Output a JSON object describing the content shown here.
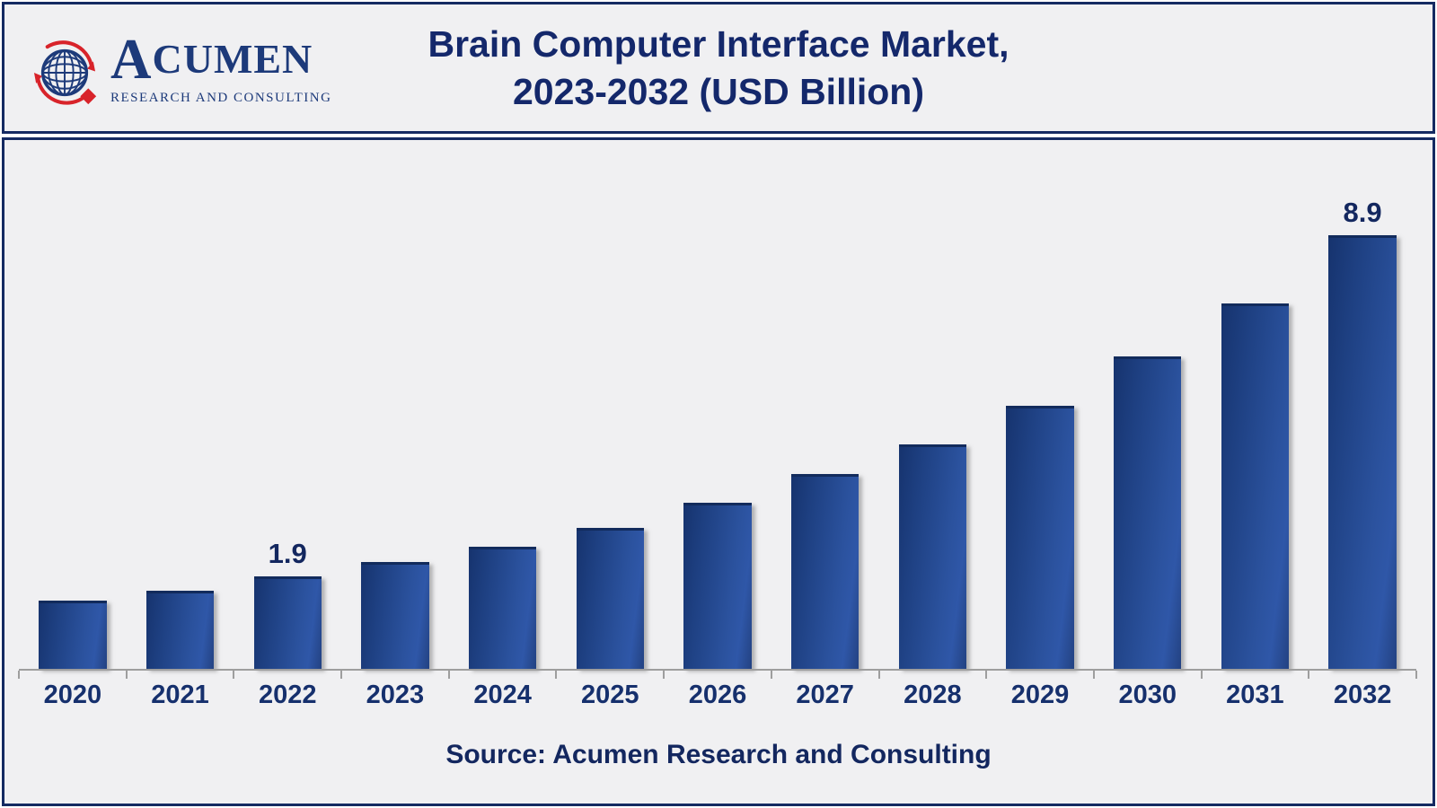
{
  "header": {
    "logo": {
      "brand_initial": "A",
      "brand_rest": "CUMEN",
      "tagline": "RESEARCH AND CONSULTING"
    },
    "title_line1": "Brain Computer Interface Market,",
    "title_line2": "2023-2032 (USD Billion)"
  },
  "chart_data": {
    "type": "bar",
    "title": "Brain Computer Interface Market, 2023-2032 (USD Billion)",
    "unit": "USD Billion",
    "categories": [
      "2020",
      "2021",
      "2022",
      "2023",
      "2024",
      "2025",
      "2026",
      "2027",
      "2028",
      "2029",
      "2030",
      "2031",
      "2032"
    ],
    "values": [
      1.4,
      1.6,
      1.9,
      2.2,
      2.5,
      2.9,
      3.4,
      4.0,
      4.6,
      5.4,
      6.4,
      7.5,
      8.9
    ],
    "labeled_points": {
      "2022": "1.9",
      "2032": "8.9"
    },
    "ylim": [
      0,
      9.6
    ],
    "grid": false,
    "legend": false,
    "bar_gradient": [
      "#16336e",
      "#2f57a8"
    ],
    "bar_top_edge": "#122b5c",
    "axis_color": "#9e9e9e",
    "text_color": "#13275f"
  },
  "footer": {
    "source_text": "Source: Acumen Research and Consulting"
  },
  "colors": {
    "panel_background": "#f0f0f2",
    "panel_border": "#152a62",
    "title_navy": "#14286b",
    "logo_navy": "#1d3a7a",
    "logo_red": "#d8232a"
  }
}
